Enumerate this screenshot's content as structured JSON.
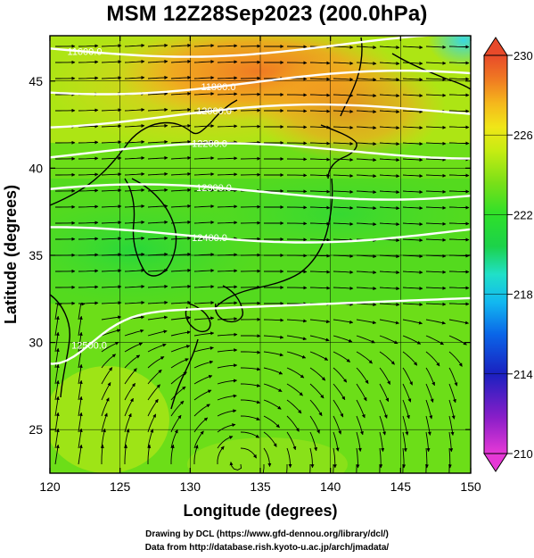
{
  "title": "MSM 12Z28Sep2023 (200.0hPa)",
  "xaxis": {
    "label": "Longitude (degrees)",
    "range": [
      120,
      150
    ],
    "ticks": [
      "120",
      "125",
      "130",
      "135",
      "140",
      "145",
      "150"
    ]
  },
  "yaxis": {
    "label": "Latitude  (degrees)",
    "range": [
      22.5,
      47.6
    ],
    "ticks": [
      "25",
      "30",
      "35",
      "40",
      "45"
    ]
  },
  "colorbar": {
    "range": [
      210,
      230
    ],
    "ticks": [
      "210",
      "214",
      "218",
      "222",
      "226",
      "230"
    ],
    "colors": [
      "#e639d6",
      "#8a1ec8",
      "#1a20c0",
      "#0a66e8",
      "#12b8f0",
      "#20e0c8",
      "#1cd24a",
      "#2ee02a",
      "#7ae018",
      "#c6ec12",
      "#f0e618",
      "#f5b71c",
      "#f07a22",
      "#e84a2a"
    ]
  },
  "contours": [
    {
      "label": "11600.0"
    },
    {
      "label": "11800.0"
    },
    {
      "label": "12000.0"
    },
    {
      "label": "12200.0"
    },
    {
      "label": "12300.0"
    },
    {
      "label": "12400.0"
    },
    {
      "label": "12500.0"
    }
  ],
  "credits": [
    "Drawing by DCL (https://www.gfd-dennou.org/library/dcl/)",
    "Data from http://database.rish.kyoto-u.ac.jp/arch/jmadata/"
  ]
}
